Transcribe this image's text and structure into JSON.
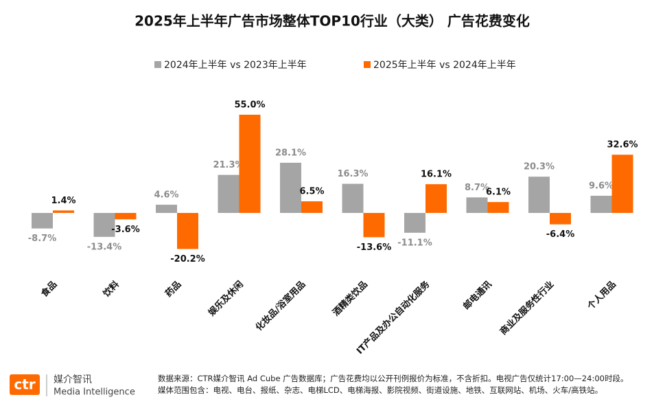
{
  "chart_data": {
    "type": "bar",
    "title": "2025年上半年广告市场整体TOP10行业（大类） 广告花费变化",
    "categories": [
      "食品",
      "饮料",
      "药品",
      "娱乐及休闲",
      "化妆品/浴室用品",
      "酒精类饮品",
      "IT产品及办公自动化服务",
      "邮电通讯",
      "商业及服务性行业",
      "个人用品"
    ],
    "series": [
      {
        "name": "2024年上半年 vs 2023年上半年",
        "color": "#a5a5a5",
        "values": [
          -8.7,
          -13.4,
          4.6,
          21.3,
          28.1,
          16.3,
          -11.1,
          8.7,
          20.3,
          9.6
        ],
        "value_labels": [
          "-8.7%",
          "-13.4%",
          "4.6%",
          "21.3%",
          "28.1%",
          "16.3%",
          "-11.1%",
          "8.7%",
          "20.3%",
          "9.6%"
        ]
      },
      {
        "name": "2025年上半年 vs 2024年上半年",
        "color": "#ff6a00",
        "values": [
          1.4,
          -3.6,
          -20.2,
          55.0,
          6.5,
          -13.6,
          16.1,
          6.1,
          -6.4,
          32.6
        ],
        "value_labels": [
          "1.4%",
          "-3.6%",
          "-20.2%",
          "55.0%",
          "6.5%",
          "-13.6%",
          "16.1%",
          "6.1%",
          "-6.4%",
          "32.6%"
        ]
      }
    ]
  },
  "footer": {
    "logo": "ctr",
    "brand": "媒介智讯",
    "brand_en": "Media Intelligence",
    "notes": [
      "数据来源：CTR媒介智讯 Ad Cube 广告数据库；广告花费均以公开刊例报价为标准，不含折扣。电视广告仅统计17:00—24:00时段。",
      "媒体范围包含：电视、电台、报纸、杂志、电梯LCD、电梯海报、影院视频、街道设施、地铁、互联网站、机场、火车/高铁站。"
    ]
  }
}
